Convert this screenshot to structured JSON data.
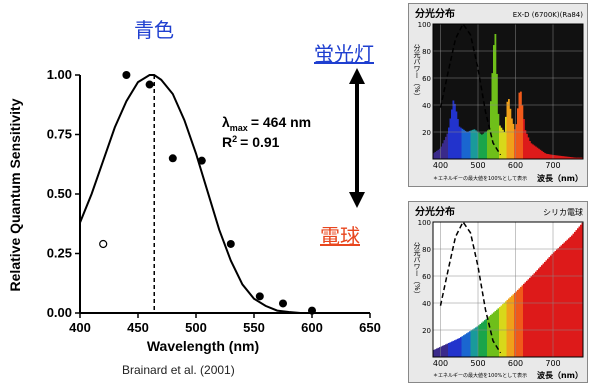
{
  "headings": {
    "blue": "青色",
    "fluorescent": "蛍光灯",
    "bulb": "電球",
    "citation": "Brainard et al. (2001)"
  },
  "colors": {
    "blue_text": "#1f3fd0",
    "orange_text": "#e8461e"
  },
  "chart_data": [
    {
      "type": "scatter",
      "title": "",
      "xlabel": "Wavelength (nm)",
      "ylabel": "Relative Quantum Sensitivity",
      "xlim": [
        400,
        650
      ],
      "ylim": [
        0.0,
        1.0
      ],
      "x_ticks": [
        "400",
        "450",
        "500",
        "550",
        "600",
        "650"
      ],
      "y_ticks": [
        "0.00",
        "0.25",
        "0.50",
        "0.75",
        "1.00"
      ],
      "annotation": {
        "lambda_symbol": "λ",
        "lambda_sub": "max",
        "lambda_value": "= 464 nm",
        "r2_label": "R",
        "r2_sup": "2",
        "r2_value": "= 0.91"
      },
      "peak_line_x": 464,
      "series": [
        {
          "kind": "filled_points",
          "x": [
            440,
            460,
            480,
            505,
            530,
            555,
            575,
            600
          ],
          "y": [
            1.0,
            0.96,
            0.65,
            0.64,
            0.29,
            0.07,
            0.04,
            0.01
          ]
        },
        {
          "kind": "open_points",
          "x": [
            420
          ],
          "y": [
            0.29
          ]
        },
        {
          "kind": "fitted_curve",
          "x": [
            400,
            410,
            420,
            430,
            440,
            450,
            460,
            464,
            470,
            480,
            490,
            500,
            510,
            520,
            530,
            540,
            550,
            560,
            570,
            580,
            590
          ],
          "y": [
            0.38,
            0.5,
            0.64,
            0.78,
            0.89,
            0.97,
            1.0,
            1.0,
            0.98,
            0.92,
            0.81,
            0.67,
            0.51,
            0.35,
            0.22,
            0.12,
            0.06,
            0.03,
            0.01,
            0.004,
            0.0
          ]
        }
      ]
    },
    {
      "type": "area",
      "title": "分光分布",
      "subtitle": "EX-D (6700K)(Ra84)",
      "xlabel": "波長（nm）",
      "ylabel": "分光パワー（%）",
      "footnote": "＊エネルギーの最大値を100%として表示",
      "xlim": [
        380,
        780
      ],
      "ylim": [
        0,
        100
      ],
      "x_ticks": [
        "400",
        "500",
        "600",
        "700"
      ],
      "y_ticks": [
        "20",
        "40",
        "60",
        "80",
        "100"
      ],
      "series": [
        {
          "name": "",
          "kind": "emission",
          "x": [
            380,
            400,
            420,
            435,
            450,
            470,
            490,
            510,
            520,
            530,
            545,
            555,
            570,
            580,
            590,
            600,
            612,
            625,
            640,
            660,
            680,
            700,
            730,
            760
          ],
          "y": [
            4,
            8,
            20,
            45,
            24,
            20,
            22,
            18,
            20,
            22,
            100,
            26,
            20,
            48,
            30,
            20,
            55,
            22,
            12,
            8,
            4,
            3,
            2,
            1
          ]
        },
        {
          "name": "",
          "kind": "sensitivity_overlay",
          "x": [
            400,
            420,
            440,
            460,
            480,
            500,
            520,
            540,
            560
          ],
          "y": [
            38,
            64,
            89,
            100,
            92,
            67,
            35,
            12,
            3
          ]
        }
      ]
    },
    {
      "type": "area",
      "title": "分光分布",
      "subtitle": "シリカ電球",
      "xlabel": "波長（nm）",
      "ylabel": "分光パワー（%）",
      "footnote": "＊エネルギーの最大値を100%として表示",
      "xlim": [
        380,
        780
      ],
      "ylim": [
        0,
        100
      ],
      "x_ticks": [
        "400",
        "500",
        "600",
        "700"
      ],
      "y_ticks": [
        "20",
        "40",
        "60",
        "80",
        "100"
      ],
      "series": [
        {
          "name": "",
          "kind": "emission",
          "x": [
            380,
            450,
            500,
            550,
            600,
            650,
            700,
            750,
            780
          ],
          "y": [
            5,
            14,
            23,
            35,
            48,
            62,
            77,
            90,
            100
          ]
        },
        {
          "name": "",
          "kind": "sensitivity_overlay",
          "x": [
            400,
            420,
            440,
            460,
            480,
            500,
            520,
            540,
            560
          ],
          "y": [
            38,
            64,
            89,
            100,
            92,
            67,
            35,
            12,
            3
          ]
        }
      ]
    }
  ]
}
